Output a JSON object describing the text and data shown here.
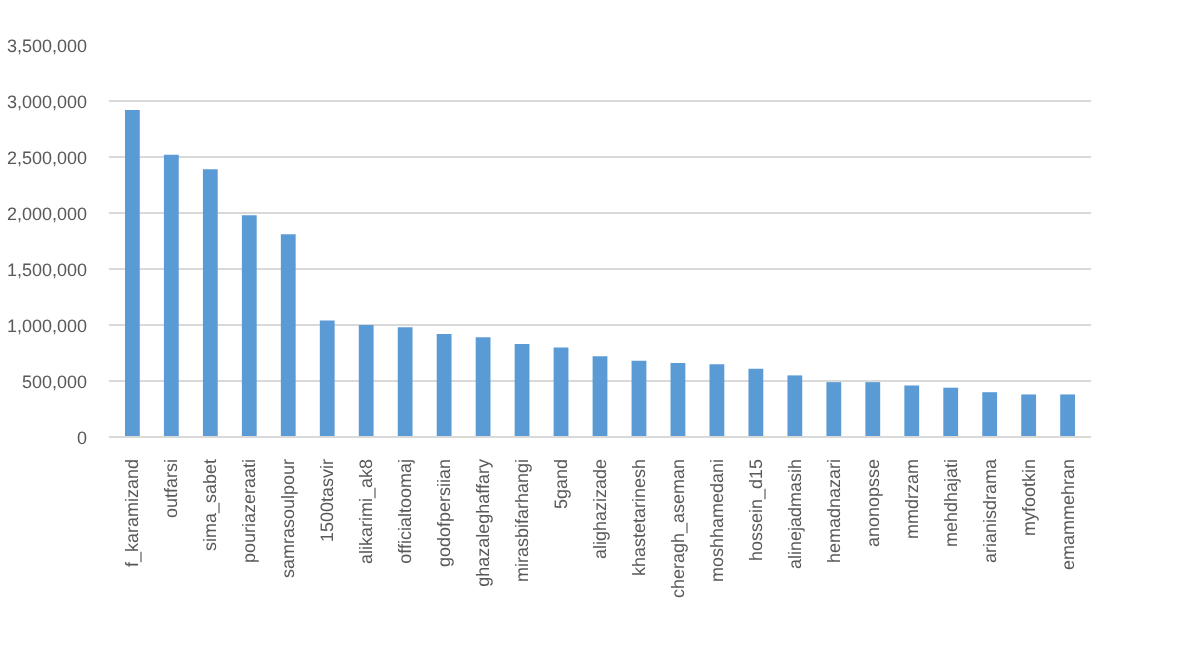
{
  "chart_data": {
    "type": "bar",
    "categories": [
      "f_karamizand",
      "outfarsi",
      "sima_sabet",
      "pouriazeraati",
      "samrasoulpour",
      "1500tasvir",
      "alikarimi_ak8",
      "officialtoomaj",
      "godofpersiian",
      "ghazaleghaffary",
      "mirasbifarhangi",
      "5gand",
      "alighazizade",
      "khastetarinesh",
      "cheragh_aseman",
      "moshhamedani",
      "hossein_d15",
      "alinejadmasih",
      "hemadnazari",
      "anonopsse",
      "mmdrzam",
      "mehdhajati",
      "arianisdrama",
      "myfootkin",
      "emammehran"
    ],
    "values": [
      2920000,
      2520000,
      2390000,
      1980000,
      1810000,
      1040000,
      1000000,
      980000,
      920000,
      890000,
      830000,
      800000,
      720000,
      680000,
      660000,
      650000,
      610000,
      550000,
      490000,
      490000,
      460000,
      440000,
      400000,
      380000,
      380000
    ],
    "color": "#5b9bd5",
    "ylim": [
      0,
      3500000
    ],
    "yticks": [
      {
        "value": 0,
        "label": "0"
      },
      {
        "value": 500000,
        "label": "500,000"
      },
      {
        "value": 1000000,
        "label": "1,000,000"
      },
      {
        "value": 1500000,
        "label": "1,500,000"
      },
      {
        "value": 2000000,
        "label": "2,000,000"
      },
      {
        "value": 2500000,
        "label": "2,500,000"
      },
      {
        "value": 3000000,
        "label": "3,000,000"
      },
      {
        "value": 3500000,
        "label": "3,500,000"
      }
    ],
    "grid": "y"
  }
}
